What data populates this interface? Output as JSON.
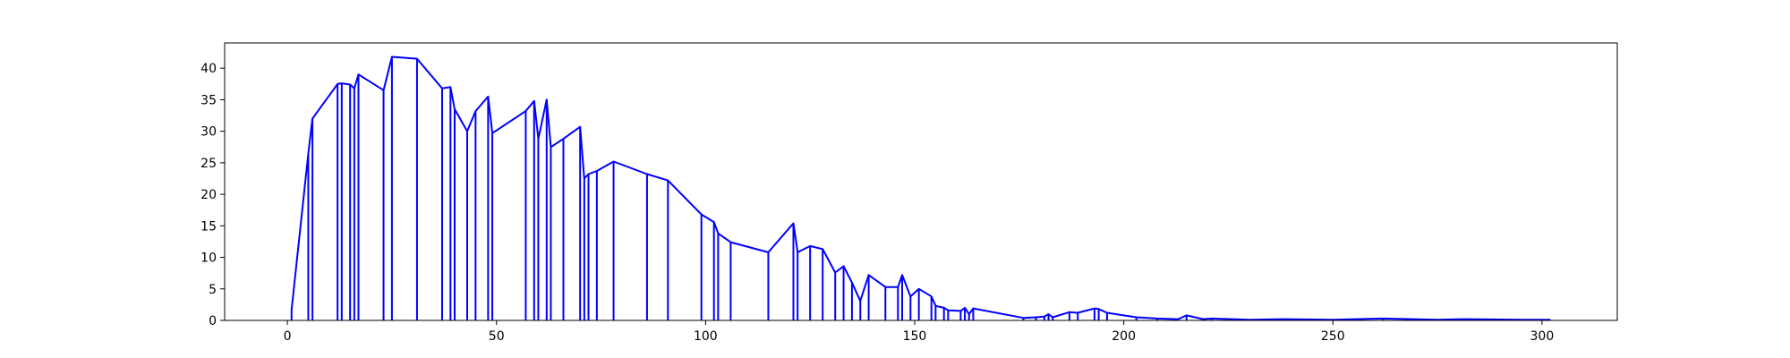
{
  "chart_data": {
    "type": "line",
    "title": "",
    "xlabel": "",
    "ylabel": "",
    "xlim": [
      -15,
      318
    ],
    "ylim": [
      0,
      44
    ],
    "xticks": [
      0,
      50,
      100,
      150,
      200,
      250,
      300
    ],
    "yticks": [
      0,
      5,
      10,
      15,
      20,
      25,
      30,
      35,
      40
    ],
    "grid": false,
    "legend": "none",
    "series": [
      {
        "color": "#0000ff",
        "style": "stem-envelope",
        "points": [
          [
            1,
            1.7
          ],
          [
            5,
            26.5
          ],
          [
            6,
            32
          ],
          [
            12,
            37.5
          ],
          [
            13,
            37.6
          ],
          [
            15,
            37.4
          ],
          [
            16,
            36.8
          ],
          [
            17,
            39
          ],
          [
            23,
            36.5
          ],
          [
            25,
            41.8
          ],
          [
            31,
            41.5
          ],
          [
            37,
            36.8
          ],
          [
            39,
            37
          ],
          [
            40,
            33.5
          ],
          [
            43,
            30
          ],
          [
            45,
            33.2
          ],
          [
            48,
            35.5
          ],
          [
            49,
            29.7
          ],
          [
            57,
            33.2
          ],
          [
            59,
            34.8
          ],
          [
            60,
            28.8
          ],
          [
            62,
            35
          ],
          [
            63,
            27.5
          ],
          [
            66,
            28.8
          ],
          [
            70,
            30.7
          ],
          [
            71,
            22.5
          ],
          [
            72,
            23.2
          ],
          [
            74,
            23.7
          ],
          [
            78,
            25.2
          ],
          [
            86,
            23.2
          ],
          [
            91,
            22.2
          ],
          [
            99,
            16.8
          ],
          [
            102,
            15.6
          ],
          [
            103,
            13.8
          ],
          [
            106,
            12.4
          ],
          [
            115,
            10.8
          ],
          [
            121,
            15.4
          ],
          [
            122,
            10.8
          ],
          [
            125,
            11.8
          ],
          [
            128,
            11.3
          ],
          [
            131,
            7.6
          ],
          [
            133,
            8.6
          ],
          [
            135,
            6
          ],
          [
            137,
            3.1
          ],
          [
            139,
            7.2
          ],
          [
            143,
            5.3
          ],
          [
            146,
            5.3
          ],
          [
            147,
            7.2
          ],
          [
            149,
            3.8
          ],
          [
            151,
            5
          ],
          [
            154,
            3.8
          ],
          [
            155,
            2.3
          ],
          [
            157,
            2
          ],
          [
            158,
            1.6
          ],
          [
            161,
            1.5
          ],
          [
            162,
            2
          ],
          [
            163,
            1
          ],
          [
            164,
            1.9
          ],
          [
            176,
            0.4
          ],
          [
            179,
            0.5
          ],
          [
            181,
            0.6
          ],
          [
            182,
            1
          ],
          [
            183,
            0.5
          ],
          [
            187,
            1.3
          ],
          [
            189,
            1.2
          ],
          [
            193,
            1.9
          ],
          [
            194,
            1.8
          ],
          [
            196,
            1.2
          ],
          [
            203,
            0.5
          ],
          [
            208,
            0.3
          ],
          [
            213,
            0.2
          ],
          [
            215,
            0.8
          ],
          [
            219,
            0.2
          ],
          [
            221,
            0.3
          ],
          [
            230,
            0.1
          ],
          [
            238,
            0.2
          ],
          [
            250,
            0.1
          ],
          [
            262,
            0.3
          ],
          [
            275,
            0.1
          ],
          [
            281,
            0.2
          ],
          [
            295,
            0.1
          ],
          [
            302,
            0.1
          ]
        ]
      }
    ]
  }
}
